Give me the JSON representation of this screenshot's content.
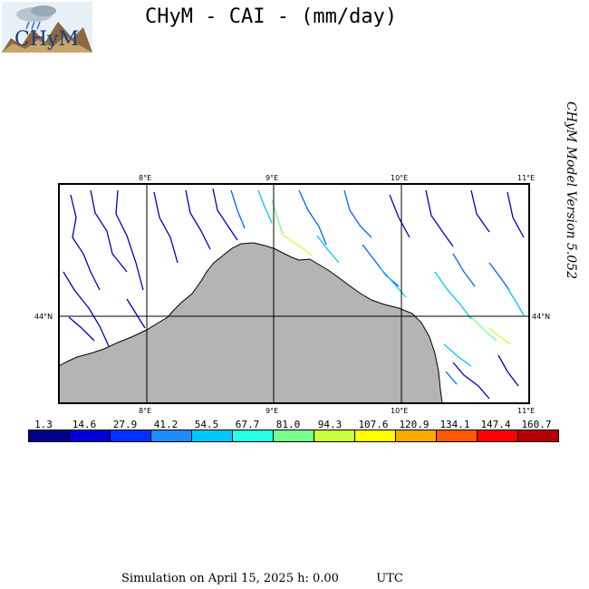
{
  "title": "CHyM - CAI - (mm/day)",
  "logo_text": "CHyM",
  "side_label": "CHyM Model Version 5.052",
  "map": {
    "lon_ticks": [
      "8°E",
      "9°E",
      "10°E",
      "11°E"
    ],
    "lat_ticks": [
      "44°N"
    ],
    "land_color": "#ffffff",
    "sea_color": "#b4b4b4"
  },
  "colorbar": {
    "labels": [
      "1.3",
      "14.6",
      "27.9",
      "41.2",
      "54.5",
      "67.7",
      "81.0",
      "94.3",
      "107.6",
      "120.9",
      "134.1",
      "147.4",
      "160.7"
    ],
    "colors": [
      "#00008c",
      "#0000d6",
      "#0032ff",
      "#1e8cff",
      "#00c8ff",
      "#28ffe6",
      "#78ff8c",
      "#c8ff3c",
      "#ffff00",
      "#ffaa00",
      "#ff5a00",
      "#ff0000",
      "#b40000"
    ]
  },
  "footer": {
    "text": "Simulation on April 15, 2025 h: 0.00",
    "timezone": "UTC"
  }
}
